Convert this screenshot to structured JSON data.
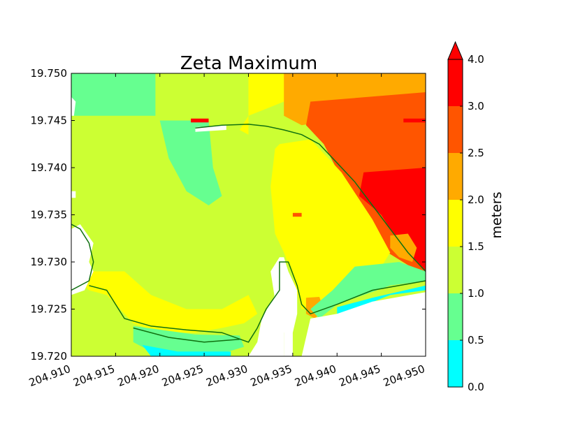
{
  "chart_data": {
    "type": "heatmap",
    "title": "Zeta Maximum",
    "xlabel": "",
    "ylabel": "",
    "xlim": [
      204.91,
      204.95
    ],
    "ylim": [
      19.72,
      19.75
    ],
    "x_ticks": [
      "204.910",
      "204.915",
      "204.920",
      "204.925",
      "204.930",
      "204.935",
      "204.940",
      "204.945",
      "204.950"
    ],
    "y_ticks": [
      "19.720",
      "19.725",
      "19.730",
      "19.735",
      "19.740",
      "19.745",
      "19.750"
    ],
    "colorbar": {
      "label": "meters",
      "extend": "max",
      "levels": [
        0.0,
        0.5,
        1.0,
        1.5,
        2.0,
        2.5,
        3.0,
        4.0
      ],
      "tick_labels": [
        "0.0",
        "0.5",
        "1.0",
        "1.5",
        "2.0",
        "2.5",
        "3.0",
        "4.0"
      ],
      "colors": [
        "#00ffff",
        "#66ff90",
        "#ccff33",
        "#ffff00",
        "#ffaa00",
        "#ff5500",
        "#ff0000"
      ]
    },
    "regions": [
      {
        "name": "nw-0.5-1.0",
        "level_index": 1,
        "poly": [
          [
            204.91,
            19.75
          ],
          [
            204.9195,
            19.75
          ],
          [
            204.9195,
            19.7455
          ],
          [
            204.91,
            19.7455
          ]
        ]
      },
      {
        "name": "channel-0.5-1.0",
        "level_index": 1,
        "poly": [
          [
            204.92,
            19.745
          ],
          [
            204.9255,
            19.745
          ],
          [
            204.926,
            19.74
          ],
          [
            204.927,
            19.737
          ],
          [
            204.9255,
            19.736
          ],
          [
            204.923,
            19.7375
          ],
          [
            204.921,
            19.741
          ]
        ]
      },
      {
        "name": "north-1.5-2.0",
        "level_index": 3,
        "poly": [
          [
            204.93,
            19.75
          ],
          [
            204.942,
            19.75
          ],
          [
            204.938,
            19.749
          ],
          [
            204.934,
            19.747
          ],
          [
            204.93,
            19.7455
          ],
          [
            204.929,
            19.744
          ],
          [
            204.93,
            19.7435
          ]
        ]
      },
      {
        "name": "ne-2.0-2.5",
        "level_index": 4,
        "poly": [
          [
            204.934,
            19.75
          ],
          [
            204.95,
            19.75
          ],
          [
            204.95,
            19.742
          ],
          [
            204.946,
            19.743
          ],
          [
            204.942,
            19.744
          ],
          [
            204.938,
            19.7448
          ],
          [
            204.936,
            19.7445
          ],
          [
            204.934,
            19.7455
          ]
        ]
      },
      {
        "name": "ne-2.5-3.0",
        "level_index": 5,
        "poly": [
          [
            204.937,
            19.747
          ],
          [
            204.95,
            19.748
          ],
          [
            204.95,
            19.7285
          ],
          [
            204.944,
            19.732
          ],
          [
            204.941,
            19.738
          ],
          [
            204.9385,
            19.7425
          ],
          [
            204.9365,
            19.7445
          ]
        ]
      },
      {
        "name": "ne-3.0-4.0",
        "level_index": 6,
        "poly": [
          [
            204.943,
            19.7395
          ],
          [
            204.95,
            19.74
          ],
          [
            204.95,
            19.729
          ],
          [
            204.947,
            19.732
          ],
          [
            204.945,
            19.735
          ],
          [
            204.9425,
            19.737
          ]
        ]
      },
      {
        "name": "bay-east-1.5-2.0",
        "level_index": 3,
        "poly": [
          [
            204.9335,
            19.7425
          ],
          [
            204.937,
            19.743
          ],
          [
            204.9405,
            19.7395
          ],
          [
            204.944,
            19.7345
          ],
          [
            204.946,
            19.731
          ],
          [
            204.945,
            19.7295
          ],
          [
            204.94,
            19.7275
          ],
          [
            204.9375,
            19.725
          ],
          [
            204.936,
            19.725
          ],
          [
            204.935,
            19.7285
          ],
          [
            204.934,
            19.731
          ],
          [
            204.933,
            19.733
          ],
          [
            204.9325,
            19.738
          ],
          [
            204.933,
            19.742
          ]
        ]
      },
      {
        "name": "bay-south-1.5-2.0",
        "level_index": 3,
        "poly": [
          [
            204.91,
            19.729
          ],
          [
            204.916,
            19.729
          ],
          [
            204.919,
            19.7265
          ],
          [
            204.923,
            19.725
          ],
          [
            204.927,
            19.725
          ],
          [
            204.93,
            19.7265
          ],
          [
            204.931,
            19.7245
          ],
          [
            204.9295,
            19.7235
          ],
          [
            204.927,
            19.723
          ],
          [
            204.924,
            19.7225
          ],
          [
            204.92,
            19.7225
          ],
          [
            204.917,
            19.7235
          ],
          [
            204.914,
            19.7265
          ],
          [
            204.912,
            19.727
          ]
        ]
      },
      {
        "name": "channel-south-0.5-1.0",
        "level_index": 1,
        "poly": [
          [
            204.917,
            19.7232
          ],
          [
            204.924,
            19.7223
          ],
          [
            204.929,
            19.7222
          ],
          [
            204.9295,
            19.721
          ],
          [
            204.926,
            19.72
          ],
          [
            204.92,
            19.72
          ],
          [
            204.917,
            19.7215
          ]
        ]
      },
      {
        "name": "south-cyan",
        "level_index": 0,
        "poly": [
          [
            204.918,
            19.7212
          ],
          [
            204.922,
            19.7205
          ],
          [
            204.928,
            19.7205
          ],
          [
            204.928,
            19.72
          ],
          [
            204.919,
            19.72
          ]
        ]
      },
      {
        "name": "pocket-2.0-2.5",
        "level_index": 4,
        "poly": [
          [
            204.9365,
            19.7262
          ],
          [
            204.938,
            19.7263
          ],
          [
            204.9385,
            19.725
          ],
          [
            204.9375,
            19.724
          ],
          [
            204.9365,
            19.7245
          ]
        ]
      },
      {
        "name": "east-shore-0.5-1.0",
        "level_index": 1,
        "poly": [
          [
            204.942,
            19.7295
          ],
          [
            204.945,
            19.7298
          ],
          [
            204.947,
            19.73
          ],
          [
            204.95,
            19.729
          ],
          [
            204.95,
            19.728
          ],
          [
            204.946,
            19.7275
          ],
          [
            204.943,
            19.7265
          ],
          [
            204.94,
            19.7255
          ],
          [
            204.938,
            19.724
          ],
          [
            204.937,
            19.725
          ],
          [
            204.9395,
            19.727
          ]
        ]
      },
      {
        "name": "east-shore-cyan",
        "level_index": 0,
        "poly": [
          [
            204.94,
            19.7252
          ],
          [
            204.944,
            19.7262
          ],
          [
            204.95,
            19.7275
          ],
          [
            204.95,
            19.727
          ],
          [
            204.946,
            19.7265
          ],
          [
            204.942,
            19.725
          ],
          [
            204.94,
            19.7245
          ]
        ]
      },
      {
        "name": "east-cove-2.0-2.5",
        "level_index": 4,
        "poly": [
          [
            204.946,
            19.7328
          ],
          [
            204.948,
            19.733
          ],
          [
            204.949,
            19.7315
          ],
          [
            204.9485,
            19.73
          ],
          [
            204.947,
            19.7305
          ],
          [
            204.946,
            19.7315
          ]
        ]
      },
      {
        "name": "hotspot-red-north",
        "level_index": 6,
        "poly": [
          [
            204.9235,
            19.7452
          ],
          [
            204.9255,
            19.7452
          ],
          [
            204.9255,
            19.7448
          ],
          [
            204.9235,
            19.7448
          ]
        ]
      },
      {
        "name": "hotspot-red-east",
        "level_index": 6,
        "poly": [
          [
            204.9475,
            19.7452
          ],
          [
            204.95,
            19.7452
          ],
          [
            204.95,
            19.7448
          ],
          [
            204.9475,
            19.7448
          ]
        ]
      },
      {
        "name": "hotspot-2.5-3.0-middle",
        "level_index": 5,
        "poly": [
          [
            204.935,
            19.7352
          ],
          [
            204.936,
            19.7352
          ],
          [
            204.936,
            19.7348
          ],
          [
            204.935,
            19.7348
          ]
        ]
      },
      {
        "name": "land-west",
        "level_index": -1,
        "poly": [
          [
            204.91,
            19.7265
          ],
          [
            204.9115,
            19.727
          ],
          [
            204.9125,
            19.729
          ],
          [
            204.912,
            19.73
          ],
          [
            204.9125,
            19.732
          ],
          [
            204.911,
            19.734
          ],
          [
            204.91,
            19.7335
          ]
        ]
      },
      {
        "name": "land-inlet",
        "level_index": -1,
        "poly": [
          [
            204.934,
            19.72
          ],
          [
            204.934,
            19.7225
          ],
          [
            204.933,
            19.726
          ],
          [
            204.9325,
            19.729
          ],
          [
            204.9335,
            19.7305
          ],
          [
            204.934,
            19.7305
          ],
          [
            204.9345,
            19.729
          ],
          [
            204.9355,
            19.727
          ],
          [
            204.9355,
            19.7245
          ],
          [
            204.935,
            19.7225
          ],
          [
            204.935,
            19.72
          ]
        ]
      },
      {
        "name": "land-bay-south",
        "level_index": -1,
        "poly": [
          [
            204.93,
            19.72
          ],
          [
            204.931,
            19.7215
          ],
          [
            204.9315,
            19.724
          ],
          [
            204.933,
            19.7265
          ],
          [
            204.934,
            19.7255
          ],
          [
            204.934,
            19.72
          ]
        ]
      },
      {
        "name": "land-southeast",
        "level_index": -1,
        "poly": [
          [
            204.936,
            19.72
          ],
          [
            204.937,
            19.724
          ],
          [
            204.94,
            19.7245
          ],
          [
            204.944,
            19.7258
          ],
          [
            204.95,
            19.7268
          ],
          [
            204.95,
            19.72
          ]
        ]
      },
      {
        "name": "land-islet",
        "level_index": -1,
        "poly": [
          [
            204.91,
            19.7375
          ],
          [
            204.9105,
            19.7375
          ],
          [
            204.9105,
            19.7368
          ],
          [
            204.91,
            19.7368
          ]
        ]
      },
      {
        "name": "land-islet-2",
        "level_index": -1,
        "poly": [
          [
            204.91,
            19.7475
          ],
          [
            204.9105,
            19.747
          ],
          [
            204.9103,
            19.7455
          ],
          [
            204.91,
            19.7455
          ]
        ]
      },
      {
        "name": "breakwater-north",
        "level_index": -1,
        "poly": [
          [
            204.924,
            19.7443
          ],
          [
            204.926,
            19.7444
          ],
          [
            204.9275,
            19.7445
          ],
          [
            204.9275,
            19.744
          ],
          [
            204.924,
            19.7438
          ]
        ]
      }
    ],
    "contours": [
      {
        "name": "north-breakwater-shoreline",
        "line": [
          [
            204.924,
            19.7442
          ],
          [
            204.927,
            19.7445
          ],
          [
            204.93,
            19.7446
          ],
          [
            204.932,
            19.7444
          ],
          [
            204.934,
            19.744
          ],
          [
            204.936,
            19.7435
          ],
          [
            204.938,
            19.7425
          ],
          [
            204.94,
            19.7405
          ],
          [
            204.942,
            19.7385
          ],
          [
            204.944,
            19.736
          ],
          [
            204.946,
            19.7335
          ],
          [
            204.948,
            19.731
          ],
          [
            204.95,
            19.729
          ]
        ]
      },
      {
        "name": "west-coast",
        "line": [
          [
            204.91,
            19.727
          ],
          [
            204.912,
            19.728
          ],
          [
            204.9125,
            19.73
          ],
          [
            204.912,
            19.732
          ],
          [
            204.911,
            19.7335
          ],
          [
            204.91,
            19.734
          ]
        ]
      },
      {
        "name": "south-bay-shoreline",
        "line": [
          [
            204.912,
            19.7275
          ],
          [
            204.914,
            19.727
          ],
          [
            204.916,
            19.724
          ],
          [
            204.919,
            19.7232
          ],
          [
            204.923,
            19.7228
          ],
          [
            204.927,
            19.7225
          ],
          [
            204.93,
            19.7215
          ],
          [
            204.931,
            19.723
          ],
          [
            204.932,
            19.725
          ],
          [
            204.9335,
            19.727
          ],
          [
            204.9335,
            19.73
          ],
          [
            204.9345,
            19.73
          ],
          [
            204.9355,
            19.7275
          ],
          [
            204.936,
            19.7255
          ],
          [
            204.937,
            19.7245
          ],
          [
            204.94,
            19.7255
          ],
          [
            204.944,
            19.727
          ],
          [
            204.95,
            19.728
          ]
        ]
      },
      {
        "name": "south-channel-line",
        "line": [
          [
            204.917,
            19.723
          ],
          [
            204.921,
            19.722
          ],
          [
            204.925,
            19.7215
          ],
          [
            204.929,
            19.7218
          ]
        ]
      }
    ]
  }
}
